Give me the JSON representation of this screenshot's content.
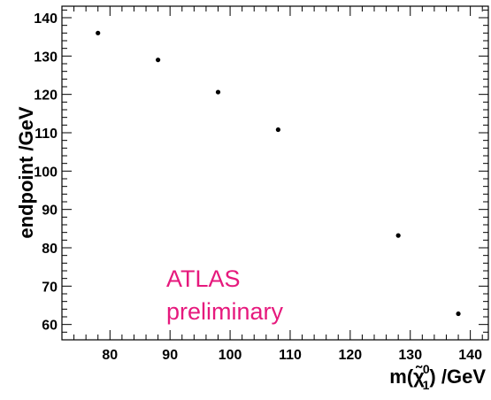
{
  "chart_data": {
    "type": "scatter",
    "title": "",
    "xlabel": "m(χ̃₁⁰) /GeV",
    "xlabel_parts": {
      "prefix": "m(",
      "symbol": "χ̃",
      "superscript": "0",
      "subscript": "1",
      "suffix": ") /GeV"
    },
    "ylabel": "endpoint /GeV",
    "xlim": [
      72,
      143
    ],
    "ylim": [
      56,
      143
    ],
    "xticks": [
      80,
      90,
      100,
      110,
      120,
      130,
      140
    ],
    "yticks": [
      60,
      70,
      80,
      90,
      100,
      110,
      120,
      130,
      140
    ],
    "grid": false,
    "legend": "none",
    "marker_color": "#000000",
    "series": [
      {
        "points": [
          {
            "x": 78,
            "y": 136.0
          },
          {
            "x": 88,
            "y": 129.0
          },
          {
            "x": 98,
            "y": 120.6
          },
          {
            "x": 108,
            "y": 110.8
          },
          {
            "x": 128,
            "y": 83.2
          },
          {
            "x": 138,
            "y": 62.8
          }
        ]
      }
    ],
    "annotations": [
      {
        "lines": [
          "ATLAS",
          "preliminary"
        ],
        "color": "#e6197d"
      }
    ]
  }
}
